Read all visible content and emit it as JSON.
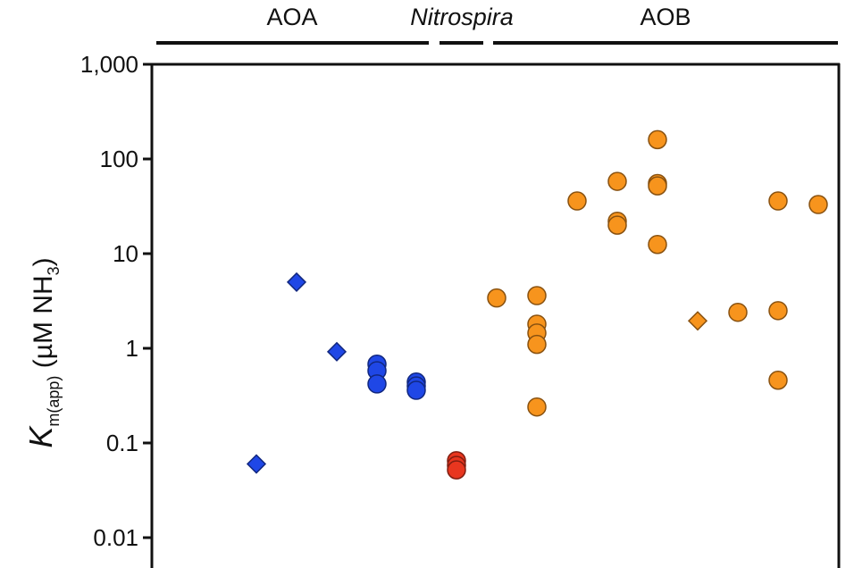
{
  "chart_data": {
    "type": "scatter",
    "title": "",
    "xlabel": "",
    "ylabel": {
      "symbol": "K",
      "subscript": "m(app)",
      "unit_open": " (µM NH",
      "unit_sub": "3",
      "unit_close": ")"
    },
    "yscale": "log",
    "ylim": [
      0.01,
      1000
    ],
    "yticks": [
      "0.01",
      "0.1",
      "1",
      "10",
      "100",
      "1,000"
    ],
    "grid": false,
    "groups": [
      {
        "label": "AOA",
        "italic": false
      },
      {
        "label": "Nitrospira",
        "italic": true
      },
      {
        "label": "AOB",
        "italic": false
      }
    ],
    "series": [
      {
        "group": "AOA",
        "color": "#1f47e6",
        "points": [
          {
            "x": 1,
            "y": 0.06,
            "marker": "diamond"
          },
          {
            "x": 2,
            "y": 5.0,
            "marker": "diamond"
          },
          {
            "x": 3,
            "y": 0.92,
            "marker": "diamond"
          },
          {
            "x": 4,
            "y": 0.68,
            "marker": "circle"
          },
          {
            "x": 4,
            "y": 0.58,
            "marker": "circle"
          },
          {
            "x": 4,
            "y": 0.42,
            "marker": "circle"
          },
          {
            "x": 5,
            "y": 0.44,
            "marker": "circle"
          },
          {
            "x": 5,
            "y": 0.4,
            "marker": "circle"
          },
          {
            "x": 5,
            "y": 0.36,
            "marker": "circle"
          }
        ]
      },
      {
        "group": "Nitrospira",
        "color": "#e8361f",
        "points": [
          {
            "x": 6,
            "y": 0.065,
            "marker": "circle"
          },
          {
            "x": 6,
            "y": 0.058,
            "marker": "circle"
          },
          {
            "x": 6,
            "y": 0.052,
            "marker": "circle"
          }
        ]
      },
      {
        "group": "AOB",
        "color": "#f7941d",
        "points": [
          {
            "x": 7,
            "y": 3.4,
            "marker": "circle"
          },
          {
            "x": 8,
            "y": 3.6,
            "marker": "circle"
          },
          {
            "x": 8,
            "y": 1.8,
            "marker": "circle"
          },
          {
            "x": 8,
            "y": 1.45,
            "marker": "circle"
          },
          {
            "x": 8,
            "y": 1.1,
            "marker": "circle"
          },
          {
            "x": 8,
            "y": 0.24,
            "marker": "circle"
          },
          {
            "x": 9,
            "y": 36,
            "marker": "circle"
          },
          {
            "x": 10,
            "y": 58,
            "marker": "circle"
          },
          {
            "x": 10,
            "y": 22,
            "marker": "circle"
          },
          {
            "x": 10,
            "y": 20,
            "marker": "circle"
          },
          {
            "x": 11,
            "y": 160,
            "marker": "circle"
          },
          {
            "x": 11,
            "y": 55,
            "marker": "circle"
          },
          {
            "x": 11,
            "y": 52,
            "marker": "circle"
          },
          {
            "x": 11,
            "y": 12.5,
            "marker": "circle"
          },
          {
            "x": 12,
            "y": 1.95,
            "marker": "diamond"
          },
          {
            "x": 13,
            "y": 2.4,
            "marker": "circle"
          },
          {
            "x": 14,
            "y": 36,
            "marker": "circle"
          },
          {
            "x": 14,
            "y": 2.5,
            "marker": "circle"
          },
          {
            "x": 14,
            "y": 0.46,
            "marker": "circle"
          },
          {
            "x": 15,
            "y": 33,
            "marker": "circle"
          }
        ]
      }
    ]
  }
}
